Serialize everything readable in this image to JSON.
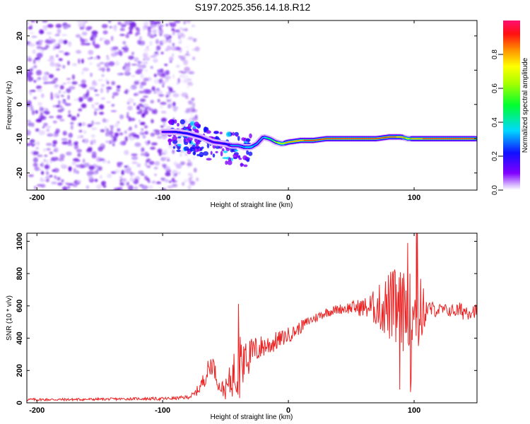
{
  "title": "S197.2025.356.14.18.R12",
  "colors": {
    "snr_line": "#ee2222",
    "frame": "#000000",
    "noise_purple": "#7a2be6",
    "signal_green": "#33ee55",
    "signal_red": "#ee1111"
  },
  "chart_data": [
    {
      "type": "heatmap",
      "name": "spectrogram",
      "xlabel": "Height of straight line (km)",
      "ylabel": "Frequency (Hz)",
      "xlim": [
        -208,
        150
      ],
      "ylim": [
        -25,
        24.5
      ],
      "xticks": [
        -200,
        -100,
        0,
        100
      ],
      "xtick_labels": [
        "-200",
        "-100",
        "0",
        "100"
      ],
      "yticks": [
        -20,
        -10,
        0,
        10,
        20
      ],
      "ytick_labels": [
        "-20",
        "-10",
        "0",
        "10",
        "20"
      ],
      "colorbar": {
        "label": "Normalized spectral amplitude",
        "range": [
          0,
          1
        ],
        "ticks": [
          0.0,
          0.2,
          0.4,
          0.6,
          0.8
        ],
        "tick_labels": [
          "0.0",
          "0.2",
          "0.4",
          "0.6",
          "0.8"
        ],
        "colormap": [
          "#ffffff",
          "#8000ff",
          "#0000ff",
          "#00ffff",
          "#00ff00",
          "#ffff00",
          "#ff8000",
          "#ff0000",
          "#ff0080"
        ]
      },
      "noise_region_x": [
        -208,
        -78
      ],
      "signal_track": {
        "x": [
          -100,
          -90,
          -80,
          -70,
          -60,
          -50,
          -45,
          -40,
          -35,
          -30,
          -25,
          -20,
          -15,
          -10,
          -5,
          0,
          10,
          20,
          30,
          40,
          50,
          60,
          70,
          80,
          90,
          95,
          100,
          110,
          120,
          130,
          140,
          150
        ],
        "frequency_hz": [
          -8,
          -8,
          -8.5,
          -9.5,
          -11,
          -11.5,
          -12,
          -12,
          -12.5,
          -12.5,
          -11.5,
          -9.5,
          -10,
          -11,
          -11.5,
          -11,
          -10.5,
          -10.5,
          -10,
          -10,
          -10,
          -10,
          -10,
          -9.5,
          -9.5,
          -10,
          -10,
          -10,
          -10,
          -10,
          -10,
          -10
        ],
        "amplitude": [
          0.25,
          0.3,
          0.3,
          0.3,
          0.25,
          0.3,
          0.35,
          0.4,
          0.45,
          0.5,
          0.45,
          0.4,
          0.55,
          0.65,
          0.8,
          0.85,
          0.9,
          0.95,
          0.95,
          0.95,
          0.95,
          0.95,
          0.95,
          0.95,
          0.9,
          0.8,
          0.85,
          0.95,
          0.95,
          0.95,
          0.95,
          0.95
        ]
      }
    },
    {
      "type": "line",
      "name": "snr",
      "xlabel": "Height of straight line (km)",
      "ylabel": "SNR (10 * v/v)",
      "xlim": [
        -208,
        150
      ],
      "ylim": [
        0,
        1050
      ],
      "xticks": [
        -200,
        -100,
        0,
        100
      ],
      "xtick_labels": [
        "-200",
        "-100",
        "0",
        "100"
      ],
      "yticks": [
        0,
        200,
        400,
        600,
        800,
        1000
      ],
      "ytick_labels": [
        "0",
        "200",
        "400",
        "600",
        "800",
        "1000"
      ],
      "series": [
        {
          "name": "SNR",
          "x": [
            -208,
            -180,
            -150,
            -120,
            -100,
            -90,
            -80,
            -75,
            -70,
            -65,
            -62,
            -60,
            -58,
            -55,
            -50,
            -45,
            -40,
            -38,
            -36,
            -34,
            -32,
            -30,
            -25,
            -20,
            -15,
            -10,
            -5,
            0,
            5,
            10,
            15,
            20,
            25,
            30,
            40,
            50,
            60,
            70,
            80,
            85,
            90,
            95,
            100,
            103,
            110,
            120,
            130,
            140,
            150
          ],
          "y": [
            20,
            20,
            22,
            25,
            25,
            28,
            35,
            50,
            100,
            180,
            230,
            250,
            180,
            100,
            80,
            150,
            250,
            320,
            200,
            400,
            280,
            300,
            330,
            350,
            360,
            380,
            400,
            420,
            440,
            470,
            500,
            520,
            540,
            560,
            580,
            590,
            590,
            590,
            600,
            580,
            560,
            580,
            570,
            560,
            580,
            575,
            570,
            570,
            570
          ],
          "noise_amplitude": [
            8,
            8,
            8,
            8,
            10,
            10,
            12,
            20,
            40,
            60,
            80,
            60,
            50,
            40,
            60,
            120,
            200,
            150,
            150,
            200,
            120,
            100,
            90,
            70,
            70,
            60,
            50,
            50,
            40,
            40,
            30,
            30,
            30,
            30,
            30,
            40,
            60,
            120,
            220,
            260,
            260,
            220,
            260,
            300,
            60,
            40,
            40,
            60,
            40
          ]
        }
      ]
    }
  ]
}
